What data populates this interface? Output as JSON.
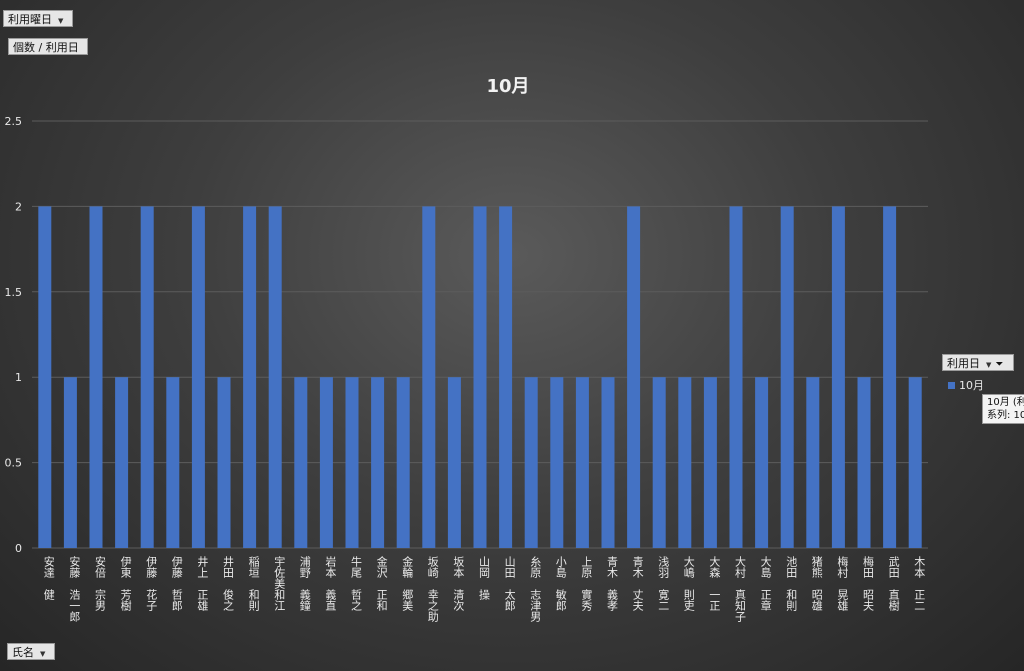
{
  "filters": {
    "page_filter_label": "利用曜日",
    "values_label": "個数 / 利用日",
    "legend_field_label": "利用日",
    "axis_field_label": "氏名"
  },
  "tooltip": {
    "line1": "10月 (利",
    "line2": "系列: 10"
  },
  "colors": {
    "bar": "#4472c4",
    "grid": "#5c5c5c",
    "text": "#e8e8e8"
  },
  "chart_data": {
    "type": "bar",
    "title": "10月",
    "xlabel": "",
    "ylabel": "",
    "ylim": [
      0,
      2.5
    ],
    "yticks": [
      "0",
      "0.5",
      "1",
      "1.5",
      "2",
      "2.5"
    ],
    "grid": true,
    "legend_position": "right",
    "categories": [
      "安達　健",
      "安藤　浩一郎",
      "安倍　宗男",
      "伊東　芳樹",
      "伊藤　花子",
      "伊藤　哲郎",
      "井上　正雄",
      "井田　俊之",
      "稲垣　和則",
      "宇佐美和江",
      "浦野　義鐘",
      "岩本　義直",
      "牛尾　哲之",
      "金沢　正和",
      "金輪　郷美",
      "坂崎　幸之助",
      "坂本　清次",
      "山岡　操",
      "山田　太郎",
      "糸原　志津男",
      "小島　敏郎",
      "上原　實秀",
      "青木　義孝",
      "青木　丈夫",
      "浅羽　寛二",
      "大嶋　則吏",
      "大森　一正",
      "大村　真知子",
      "大島　正章",
      "池田　和則",
      "猪熊　昭雄",
      "梅村　晃雄",
      "梅田　昭夫",
      "武田　直樹",
      "木本　正二"
    ],
    "series": [
      {
        "name": "10月",
        "values": [
          2,
          1,
          2,
          1,
          2,
          1,
          2,
          1,
          2,
          2,
          1,
          1,
          1,
          1,
          1,
          2,
          1,
          2,
          2,
          1,
          1,
          1,
          1,
          2,
          1,
          1,
          1,
          2,
          1,
          2,
          1,
          2,
          1,
          2,
          1
        ]
      }
    ]
  }
}
